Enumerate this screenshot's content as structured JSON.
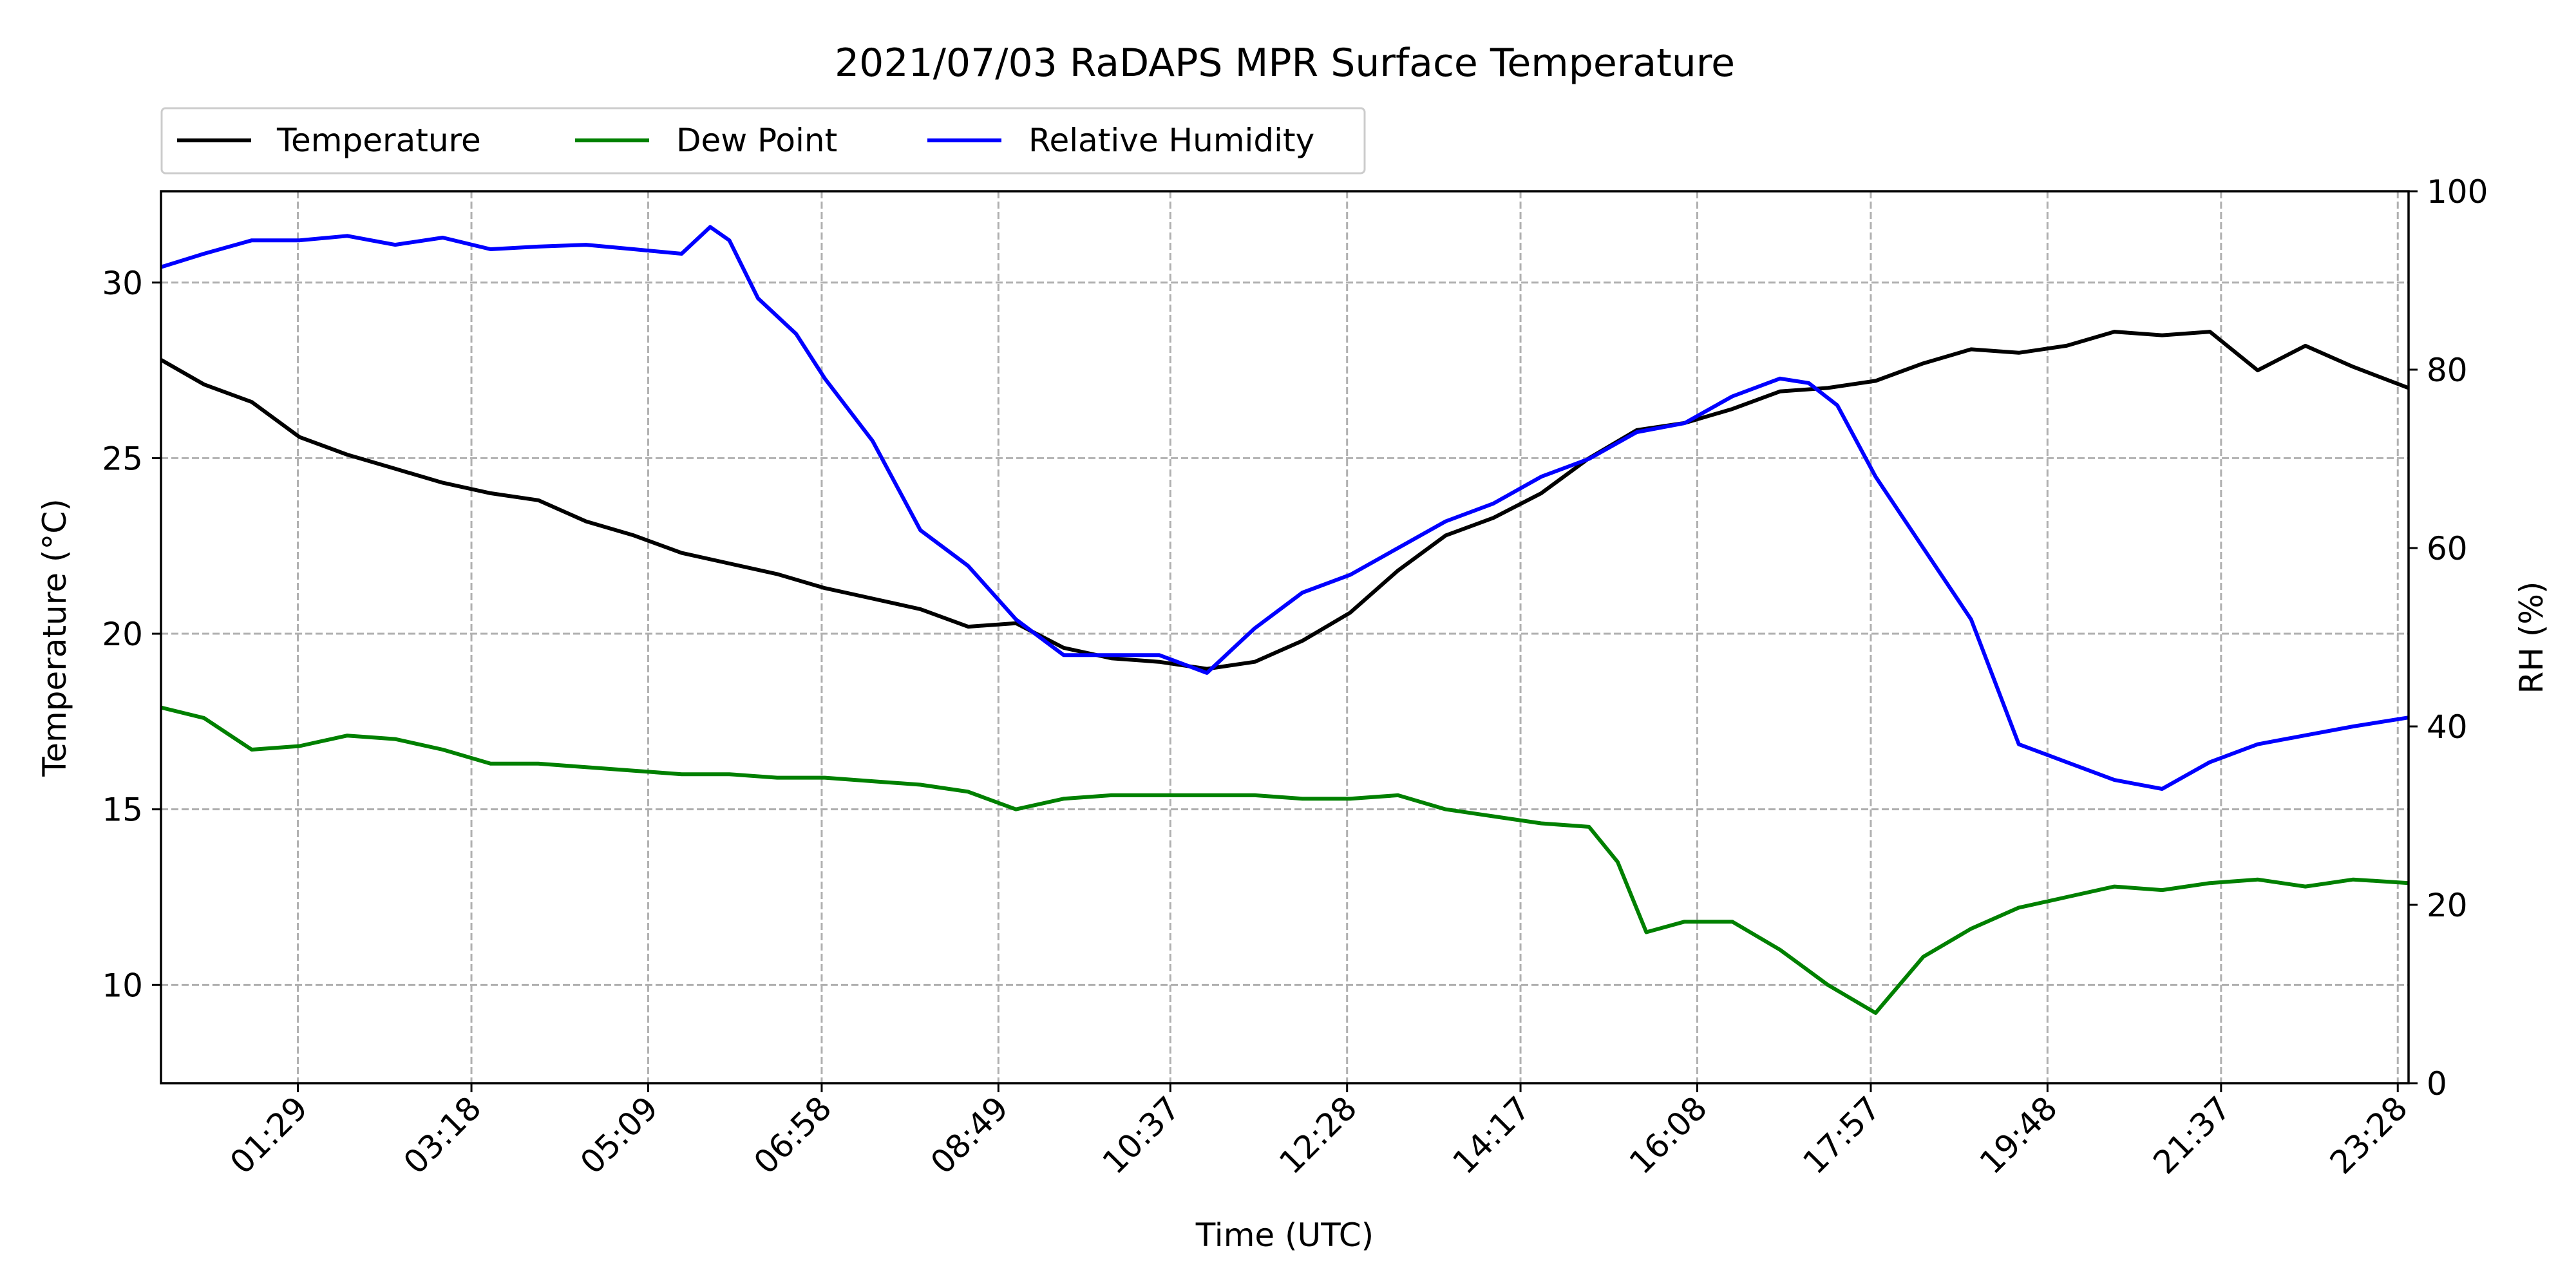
{
  "chart_data": {
    "type": "line",
    "title": "2021/07/03 RaDAPS MPR Surface Temperature",
    "xlabel": "Time (UTC)",
    "ylabel": "Temperature ($^\\circ$C)",
    "ylabel_display": "Temperature (°C)",
    "y2label": "RH (%)",
    "x_tick_labels": [
      "01:29",
      "03:18",
      "05:09",
      "06:58",
      "08:49",
      "10:37",
      "12:28",
      "14:17",
      "16:08",
      "17:57",
      "19:48",
      "21:37",
      "23:28"
    ],
    "x_tick_hours": [
      1.483,
      3.3,
      5.15,
      6.967,
      8.817,
      10.617,
      12.467,
      14.283,
      16.133,
      17.95,
      19.8,
      21.617,
      23.467
    ],
    "xlim_hours": [
      0.05,
      23.58
    ],
    "ylim": [
      7.2,
      32.6
    ],
    "y_ticks": [
      10,
      15,
      20,
      25,
      30
    ],
    "y2lim": [
      0,
      100
    ],
    "y2_ticks": [
      0,
      20,
      40,
      60,
      80,
      100
    ],
    "grid": true,
    "legend_position": "above plot, upper-left",
    "legend": [
      "Temperature",
      "Dew Point",
      "Relative Humidity"
    ],
    "series": [
      {
        "name": "Temperature",
        "color": "#000000",
        "axis": "left",
        "x_hours": [
          0.05,
          0.5,
          1.0,
          1.5,
          2.0,
          2.5,
          3.0,
          3.5,
          4.0,
          4.5,
          5.0,
          5.5,
          6.0,
          6.5,
          7.0,
          7.5,
          8.0,
          8.5,
          9.0,
          9.5,
          10.0,
          10.5,
          11.0,
          11.5,
          12.0,
          12.5,
          13.0,
          13.5,
          14.0,
          14.5,
          15.0,
          15.5,
          16.0,
          16.5,
          17.0,
          17.5,
          18.0,
          18.5,
          19.0,
          19.5,
          20.0,
          20.5,
          21.0,
          21.5,
          22.0,
          22.5,
          23.0,
          23.58
        ],
        "values": [
          27.8,
          27.1,
          26.6,
          25.6,
          25.1,
          24.7,
          24.3,
          24.0,
          23.8,
          23.2,
          22.8,
          22.3,
          22.0,
          21.7,
          21.3,
          21.0,
          20.7,
          20.2,
          20.3,
          19.6,
          19.3,
          19.2,
          19.0,
          19.2,
          19.8,
          20.6,
          21.8,
          22.8,
          23.3,
          24.0,
          25.0,
          25.8,
          26.0,
          26.4,
          26.9,
          27.0,
          27.2,
          27.7,
          28.1,
          28.0,
          28.2,
          28.6,
          28.5,
          28.6,
          27.5,
          28.2,
          27.6,
          27.0
        ]
      },
      {
        "name": "Dew Point",
        "color": "#008000",
        "axis": "left",
        "x_hours": [
          0.05,
          0.5,
          1.0,
          1.5,
          2.0,
          2.5,
          3.0,
          3.5,
          4.0,
          4.5,
          5.0,
          5.5,
          6.0,
          6.5,
          7.0,
          7.5,
          8.0,
          8.5,
          9.0,
          9.5,
          10.0,
          10.5,
          11.0,
          11.5,
          12.0,
          12.5,
          13.0,
          13.5,
          14.0,
          14.5,
          15.0,
          15.3,
          15.6,
          16.0,
          16.5,
          17.0,
          17.5,
          18.0,
          18.5,
          19.0,
          19.5,
          20.0,
          20.5,
          21.0,
          21.5,
          22.0,
          22.5,
          23.0,
          23.58
        ],
        "values": [
          17.9,
          17.6,
          16.7,
          16.8,
          17.1,
          17.0,
          16.7,
          16.3,
          16.3,
          16.2,
          16.1,
          16.0,
          16.0,
          15.9,
          15.9,
          15.8,
          15.7,
          15.5,
          15.0,
          15.3,
          15.4,
          15.4,
          15.4,
          15.4,
          15.3,
          15.3,
          15.4,
          15.0,
          14.8,
          14.6,
          14.5,
          13.5,
          11.5,
          11.8,
          11.8,
          11.0,
          10.0,
          9.2,
          10.8,
          11.6,
          12.2,
          12.5,
          12.8,
          12.7,
          12.9,
          13.0,
          12.8,
          13.0,
          12.9
        ]
      },
      {
        "name": "Relative Humidity",
        "color": "#0000ff",
        "axis": "right",
        "x_hours": [
          0.05,
          0.5,
          1.0,
          1.5,
          2.0,
          2.5,
          3.0,
          3.5,
          4.0,
          4.5,
          5.0,
          5.5,
          5.8,
          6.0,
          6.3,
          6.7,
          7.0,
          7.5,
          8.0,
          8.5,
          9.0,
          9.5,
          10.0,
          10.5,
          11.0,
          11.5,
          12.0,
          12.5,
          13.0,
          13.5,
          14.0,
          14.5,
          15.0,
          15.5,
          16.0,
          16.5,
          17.0,
          17.3,
          17.6,
          18.0,
          18.5,
          19.0,
          19.5,
          20.0,
          20.5,
          21.0,
          21.5,
          22.0,
          22.5,
          23.0,
          23.58
        ],
        "values": [
          91.5,
          93.0,
          94.5,
          94.5,
          95.0,
          94.0,
          94.8,
          93.5,
          93.8,
          94.0,
          93.5,
          93.0,
          96.0,
          94.5,
          88.0,
          84.0,
          79.0,
          72.0,
          62.0,
          58.0,
          52.0,
          48.0,
          48.0,
          48.0,
          46.0,
          51.0,
          55.0,
          57.0,
          60.0,
          63.0,
          65.0,
          68.0,
          70.0,
          73.0,
          74.0,
          77.0,
          79.0,
          78.5,
          76.0,
          68.0,
          60.0,
          52.0,
          38.0,
          36.0,
          34.0,
          33.0,
          36.0,
          38.0,
          39.0,
          40.0,
          41.0
        ]
      }
    ]
  }
}
